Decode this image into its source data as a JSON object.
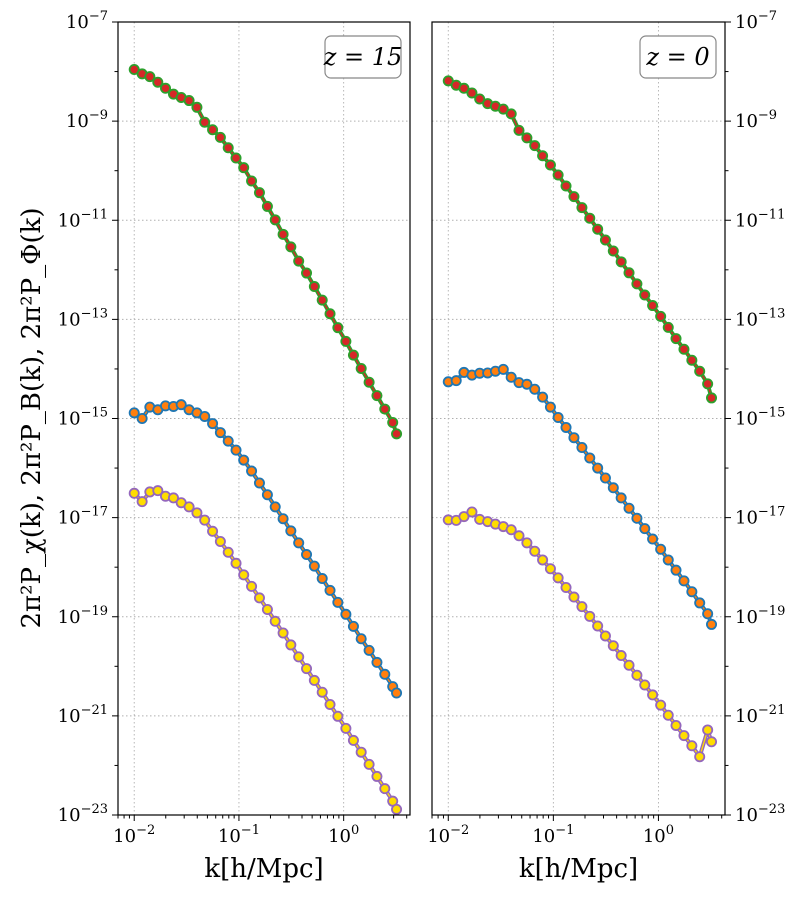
{
  "chart_data": [
    {
      "type": "line",
      "panel": "left",
      "annotation": "z = 15",
      "xlabel": "k[h/Mpc]",
      "ylabel": "2π²P_χ(k), 2π²P_B(k), 2π²P_Φ(k)",
      "xscale": "log",
      "yscale": "log",
      "xlim": [
        0.007,
        4.3
      ],
      "ylim": [
        1e-23,
        1e-07
      ],
      "xticks": [
        "10^-2",
        "10^-1",
        "10^0"
      ],
      "yticks": [
        "10^-23",
        "10^-21",
        "10^-19",
        "10^-17",
        "10^-15",
        "10^-13",
        "10^-11",
        "10^-9",
        "10^-7"
      ],
      "grid": true,
      "x": [
        0.01,
        0.0119,
        0.0141,
        0.0168,
        0.0199,
        0.0237,
        0.0281,
        0.0334,
        0.0397,
        0.0471,
        0.056,
        0.0665,
        0.079,
        0.0938,
        0.111,
        0.132,
        0.157,
        0.187,
        0.222,
        0.264,
        0.313,
        0.372,
        0.442,
        0.525,
        0.624,
        0.741,
        0.88,
        1.05,
        1.24,
        1.47,
        1.75,
        2.08,
        2.47,
        2.94,
        3.2
      ],
      "series": [
        {
          "color": "#2ca02c",
          "marker_color": "#d62728",
          "values": [
            1.1e-08,
            9e-09,
            7.9e-09,
            6.1e-09,
            4.6e-09,
            3.5e-09,
            3e-09,
            2.6e-09,
            1.9e-09,
            9.5e-10,
            6.7e-10,
            4.7e-10,
            2.9e-10,
            1.8e-10,
            1.15e-10,
            6.2e-11,
            3.6e-11,
            1.9e-11,
            1.02e-11,
            5.2e-12,
            2.9e-12,
            1.5e-12,
            8.6e-13,
            4.6e-13,
            2.45e-13,
            1.3e-13,
            6.8e-14,
            3.6e-14,
            1.9e-14,
            1.02e-14,
            5.4e-15,
            2.9e-15,
            1.55e-15,
            8.3e-16,
            4.9e-16
          ]
        },
        {
          "color": "#1f77b4",
          "marker_color": "#ff7f0e",
          "values": [
            1.3e-15,
            1e-15,
            1.7e-15,
            1.5e-15,
            1.8e-15,
            1.75e-15,
            1.9e-15,
            1.5e-15,
            1.3e-15,
            1.1e-15,
            7.9e-16,
            5.2e-16,
            3.5e-16,
            2.3e-16,
            1.45e-16,
            8.7e-17,
            5e-17,
            2.9e-17,
            1.65e-17,
            9.5e-18,
            5.4e-18,
            3.1e-18,
            1.8e-18,
            1.05e-18,
            5.9e-19,
            3.4e-19,
            1.95e-19,
            1.12e-19,
            6.4e-20,
            3.6e-20,
            2.1e-20,
            1.2e-20,
            6.9e-21,
            3.9e-21,
            2.9e-21
          ]
        },
        {
          "color": "#9467bd",
          "marker_color": "#ffdd00",
          "values": [
            3.1e-17,
            2.1e-17,
            3.3e-17,
            3.5e-17,
            2.7e-17,
            2.5e-17,
            2e-17,
            1.65e-17,
            1.25e-17,
            8.9e-18,
            5.3e-18,
            3.3e-18,
            2e-18,
            1.2e-18,
            7e-19,
            4.1e-19,
            2.4e-19,
            1.4e-19,
            8.1e-20,
            4.7e-20,
            2.7e-20,
            1.55e-20,
            9e-21,
            5.2e-21,
            3e-21,
            1.7e-21,
            9.8e-22,
            5.6e-22,
            3.2e-22,
            1.85e-22,
            1.05e-22,
            6e-23,
            3.4e-23,
            1.9e-23,
            1.3e-23
          ]
        }
      ]
    },
    {
      "type": "line",
      "panel": "right",
      "annotation": "z = 0",
      "xlabel": "k[h/Mpc]",
      "xscale": "log",
      "yscale": "log",
      "xlim": [
        0.007,
        4.3
      ],
      "ylim": [
        1e-23,
        1e-07
      ],
      "xticks": [
        "10^-2",
        "10^-1",
        "10^0"
      ],
      "yticks": [
        "10^-23",
        "10^-21",
        "10^-19",
        "10^-17",
        "10^-15",
        "10^-13",
        "10^-11",
        "10^-9",
        "10^-7"
      ],
      "grid": true,
      "x": [
        0.01,
        0.0119,
        0.0141,
        0.0168,
        0.0199,
        0.0237,
        0.0281,
        0.0334,
        0.0397,
        0.0471,
        0.056,
        0.0665,
        0.079,
        0.0938,
        0.111,
        0.132,
        0.157,
        0.187,
        0.222,
        0.264,
        0.313,
        0.372,
        0.442,
        0.525,
        0.624,
        0.741,
        0.88,
        1.05,
        1.24,
        1.47,
        1.75,
        2.08,
        2.47,
        2.94,
        3.2
      ],
      "series": [
        {
          "color": "#2ca02c",
          "marker_color": "#d62728",
          "values": [
            6.5e-09,
            5.3e-09,
            4.6e-09,
            3.7e-09,
            2.8e-09,
            2.25e-09,
            2e-09,
            1.75e-09,
            1.4e-09,
            6.5e-10,
            4.6e-10,
            3.2e-10,
            2e-10,
            1.3e-10,
            8.2e-11,
            4.9e-11,
            3e-11,
            1.8e-11,
            1.1e-11,
            6.6e-12,
            4e-12,
            2.4e-12,
            1.45e-12,
            8.7e-13,
            5.2e-13,
            3.1e-13,
            1.9e-13,
            1.15e-13,
            6.9e-14,
            4.1e-14,
            2.5e-14,
            1.5e-14,
            9e-15,
            5e-15,
            2.6e-15
          ]
        },
        {
          "color": "#1f77b4",
          "marker_color": "#ff7f0e",
          "values": [
            5.5e-15,
            5.8e-15,
            8.5e-15,
            7.5e-15,
            8.2e-15,
            8.3e-15,
            9e-15,
            9.8e-15,
            6.8e-15,
            5.3e-15,
            4.9e-15,
            3.9e-15,
            2.7e-15,
            1.7e-15,
            1.05e-15,
            6.6e-16,
            4.1e-16,
            2.6e-16,
            1.6e-16,
            1e-16,
            6.3e-17,
            4e-17,
            2.5e-17,
            1.55e-17,
            9.7e-18,
            6e-18,
            3.7e-18,
            2.3e-18,
            1.4e-18,
            8.7e-19,
            5.3e-19,
            3.2e-19,
            1.9e-19,
            1.15e-19,
            7e-20
          ]
        },
        {
          "color": "#9467bd",
          "marker_color": "#ffdd00",
          "values": [
            9e-18,
            8.8e-18,
            1.05e-17,
            1.3e-17,
            9.2e-18,
            8.3e-18,
            7.4e-18,
            6.6e-18,
            5.7e-18,
            4.3e-18,
            3.1e-18,
            2.1e-18,
            1.4e-18,
            9.3e-19,
            6.1e-19,
            3.9e-19,
            2.5e-19,
            1.6e-19,
            1.02e-19,
            6.5e-20,
            4.1e-20,
            2.6e-20,
            1.65e-20,
            1.05e-20,
            6.6e-21,
            4.2e-21,
            2.65e-21,
            1.65e-21,
            1.03e-21,
            6.4e-22,
            4e-22,
            2.5e-22,
            1.5e-22,
            5.2e-22,
            3e-22
          ]
        }
      ]
    }
  ]
}
